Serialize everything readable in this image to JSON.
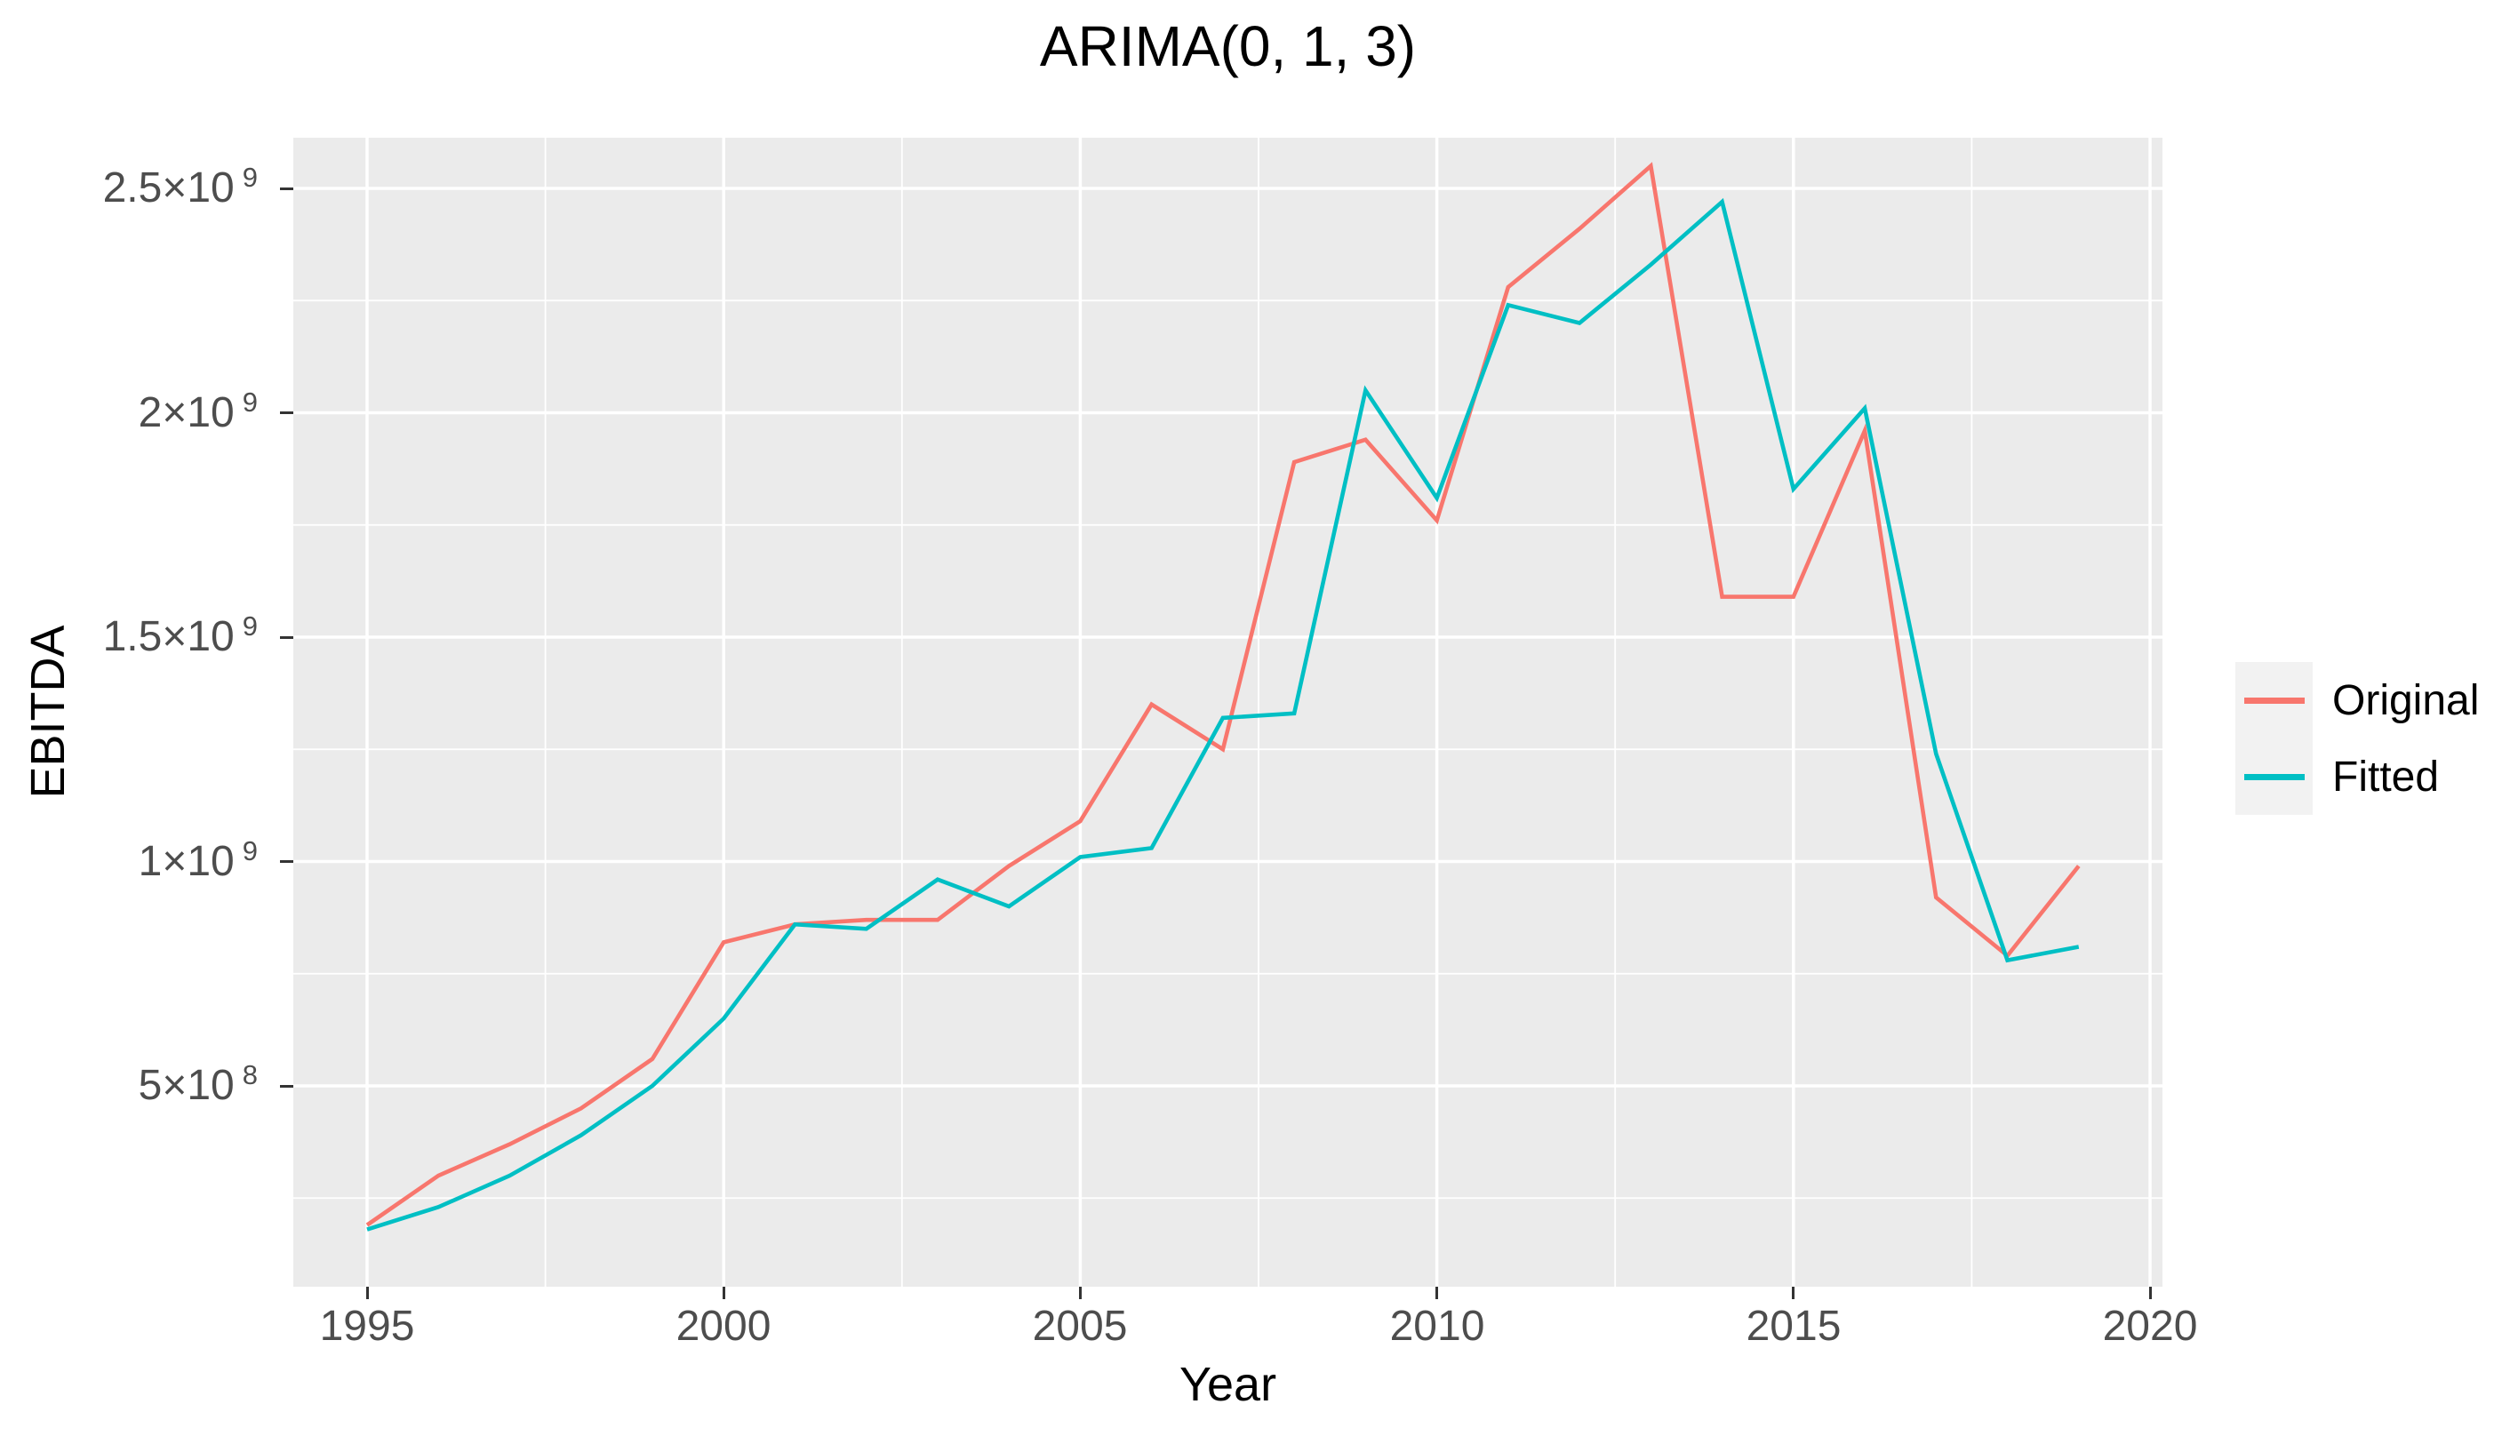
{
  "title": "ARIMA(0, 1, 3)",
  "axes": {
    "x": {
      "title": "Year",
      "tick_labels": [
        "1995",
        "2000",
        "2005",
        "2010",
        "2015",
        "2020"
      ]
    },
    "y": {
      "title": "EBITDA",
      "tick_labels": [
        {
          "mantissa": "2.5×10",
          "exponent": "9",
          "value": 2500000000
        },
        {
          "mantissa": "2×10",
          "exponent": "9",
          "value": 2000000000
        },
        {
          "mantissa": "1.5×10",
          "exponent": "9",
          "value": 1500000000
        },
        {
          "mantissa": "1×10",
          "exponent": "9",
          "value": 1000000000
        },
        {
          "mantissa": "5×10",
          "exponent": "8",
          "value": 500000000
        }
      ]
    }
  },
  "legend": {
    "items": [
      {
        "label": "Original",
        "color": "#F8766D"
      },
      {
        "label": "Fitted",
        "color": "#00BFC4"
      }
    ]
  },
  "style": {
    "panel_fill": "#EBEBEB",
    "grid_color": "#FFFFFF",
    "tick_color": "#333333",
    "axis_text_color": "#4D4D4D",
    "legend_key_fill": "#F2F2F2"
  },
  "chart_data": {
    "type": "line",
    "title": "ARIMA(0, 1, 3)",
    "xlabel": "Year",
    "ylabel": "EBITDA",
    "x": [
      1995,
      1996,
      1997,
      1998,
      1999,
      2000,
      2001,
      2002,
      2003,
      2004,
      2005,
      2006,
      2007,
      2008,
      2009,
      2010,
      2011,
      2012,
      2013,
      2014,
      2015,
      2016,
      2017,
      2018,
      2019
    ],
    "series": [
      {
        "name": "Original",
        "color": "#F8766D",
        "values": [
          190000000,
          300000000,
          370000000,
          450000000,
          560000000,
          820000000,
          860000000,
          870000000,
          870000000,
          990000000,
          1090000000,
          1350000000,
          1250000000,
          1890000000,
          1940000000,
          1760000000,
          2280000000,
          2410000000,
          2550000000,
          1590000000,
          1590000000,
          1960000000,
          920000000,
          790000000,
          990000000
        ]
      },
      {
        "name": "Fitted",
        "color": "#00BFC4",
        "values": [
          180000000,
          230000000,
          300000000,
          390000000,
          500000000,
          650000000,
          860000000,
          850000000,
          960000000,
          900000000,
          1010000000,
          1030000000,
          1320000000,
          1330000000,
          2050000000,
          1810000000,
          2240000000,
          2200000000,
          2330000000,
          2470000000,
          1830000000,
          2010000000,
          1240000000,
          780000000,
          810000000
        ]
      }
    ],
    "xlim": [
      1993.96,
      2020.19
    ],
    "ylim": [
      52000000,
      2593000000
    ],
    "x_major_ticks": [
      1995,
      2000,
      2005,
      2010,
      2015,
      2020
    ],
    "x_minor_ticks": [
      1997.5,
      2002.5,
      2007.5,
      2012.5,
      2017.5
    ],
    "y_major_ticks": [
      500000000,
      1000000000,
      1500000000,
      2000000000,
      2500000000
    ],
    "y_minor_ticks": [
      250000000,
      750000000,
      1250000000,
      1750000000,
      2250000000
    ],
    "grid": "white major and minor gridlines on gray panel",
    "legend_position": "right"
  }
}
